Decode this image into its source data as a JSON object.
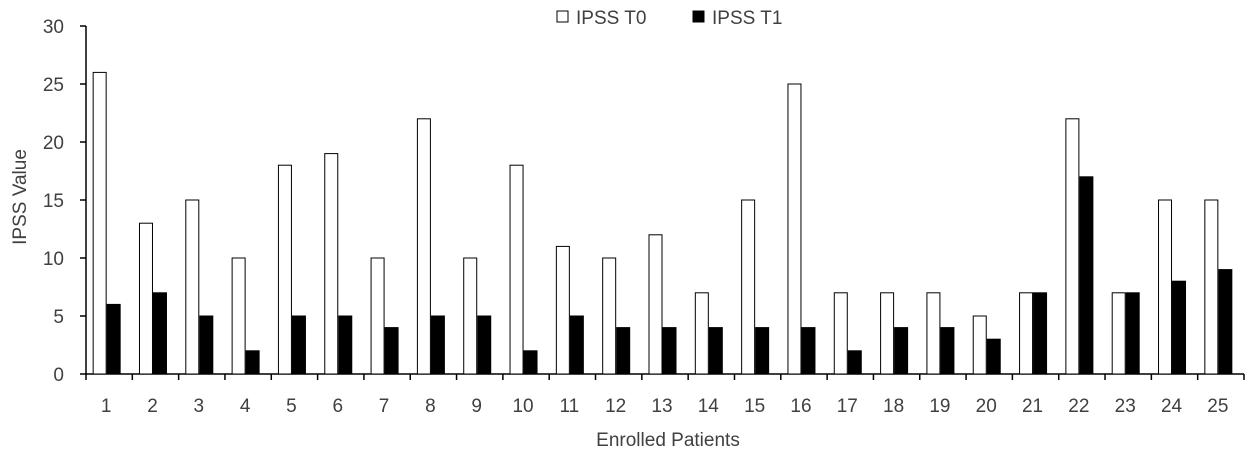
{
  "chart_data": {
    "type": "bar",
    "title": "",
    "xlabel": "Enrolled Patients",
    "ylabel": "IPSS Value",
    "ylim": [
      0,
      30
    ],
    "yticks": [
      0,
      5,
      10,
      15,
      20,
      25,
      30
    ],
    "y_tick_labels": [
      "0",
      "5",
      "10",
      "15",
      "20",
      "25",
      "30"
    ],
    "grid": false,
    "legend_position": "top-center",
    "categories": [
      "1",
      "2",
      "3",
      "4",
      "5",
      "6",
      "7",
      "8",
      "9",
      "10",
      "11",
      "12",
      "13",
      "14",
      "15",
      "16",
      "17",
      "18",
      "19",
      "20",
      "21",
      "22",
      "23",
      "24",
      "25"
    ],
    "series": [
      {
        "name": "IPSS T0",
        "fill": "#ffffff",
        "stroke": "#000000",
        "values": [
          26,
          13,
          15,
          10,
          18,
          19,
          10,
          22,
          10,
          18,
          11,
          10,
          12,
          7,
          15,
          25,
          7,
          7,
          7,
          5,
          7,
          22,
          7,
          15,
          15
        ]
      },
      {
        "name": "IPSS T1",
        "fill": "#000000",
        "stroke": "#000000",
        "values": [
          6,
          7,
          5,
          2,
          5,
          5,
          4,
          5,
          5,
          2,
          5,
          4,
          4,
          4,
          4,
          4,
          2,
          4,
          4,
          3,
          7,
          17,
          7,
          8,
          9
        ]
      }
    ]
  }
}
